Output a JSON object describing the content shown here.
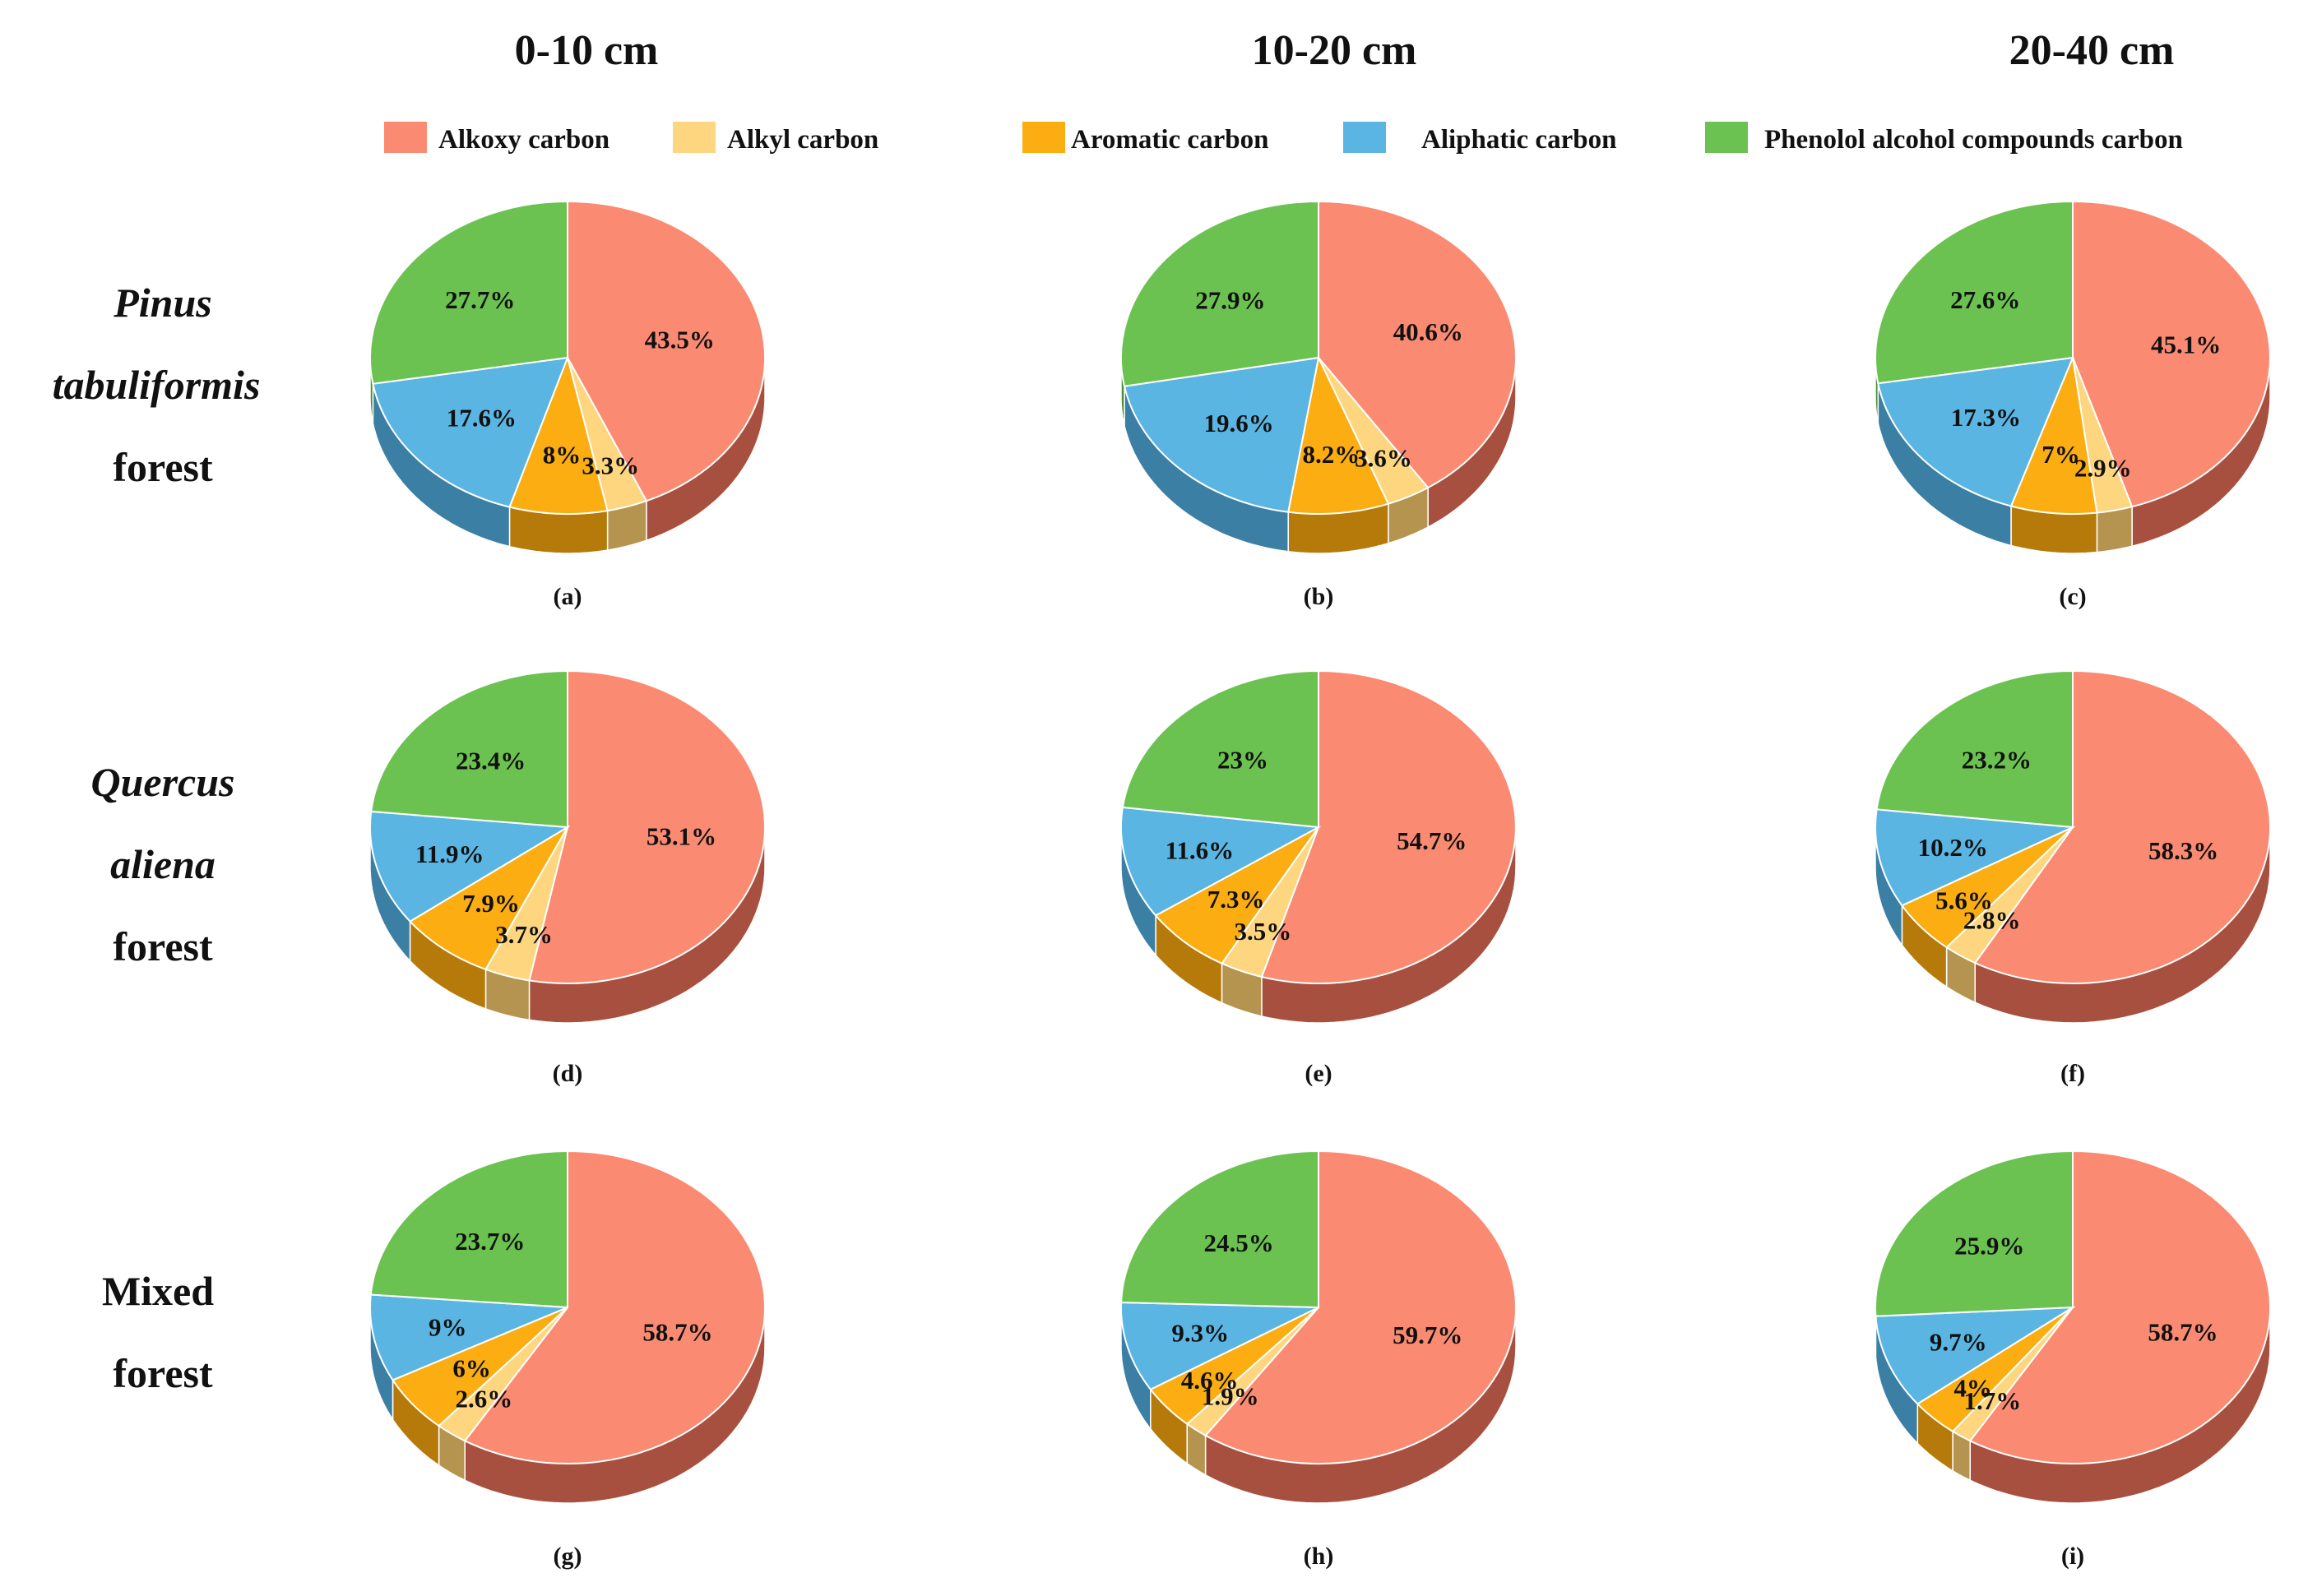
{
  "column_titles": [
    "0-10 cm",
    "10-20 cm",
    "20-40 cm"
  ],
  "row_titles": [
    {
      "lines": [
        "Pinus",
        "tabuliformis",
        "forest"
      ],
      "italic": [
        true,
        true,
        false
      ]
    },
    {
      "lines": [
        "Quercus",
        "aliena",
        "forest"
      ],
      "italic": [
        true,
        true,
        false
      ]
    },
    {
      "lines": [
        "Mixed",
        "forest"
      ],
      "italic": [
        false,
        false
      ]
    }
  ],
  "legend": [
    {
      "label": "Alkoxy carbon",
      "color": "#fa8b72"
    },
    {
      "label": "Alkyl carbon",
      "color": "#fdd67f"
    },
    {
      "label": "Aromatic carbon",
      "color": "#fbad12"
    },
    {
      "label": "Aliphatic carbon",
      "color": "#5bb5e2"
    },
    {
      "label": "Phenolol alcohol compounds carbon",
      "color": "#6cc250"
    }
  ],
  "chart_data": [
    {
      "type": "pie",
      "caption": "(a)",
      "labels": [
        "Alkoxy carbon",
        "Alkyl carbon",
        "Aromatic carbon",
        "Aliphatic carbon",
        "Phenolol alcohol compounds carbon"
      ],
      "values": [
        43.5,
        3.3,
        8,
        17.6,
        27.7
      ],
      "value_labels": [
        "43.5%",
        "3.3%",
        "8%",
        "17.6%",
        "27.7%"
      ]
    },
    {
      "type": "pie",
      "caption": "(b)",
      "labels": [
        "Alkoxy carbon",
        "Alkyl carbon",
        "Aromatic carbon",
        "Aliphatic carbon",
        "Phenolol alcohol compounds carbon"
      ],
      "values": [
        40.6,
        3.6,
        8.2,
        19.6,
        27.9
      ],
      "value_labels": [
        "40.6%",
        "3.6%",
        "8.2%",
        "19.6%",
        "27.9%"
      ]
    },
    {
      "type": "pie",
      "caption": "(c)",
      "labels": [
        "Alkoxy carbon",
        "Alkyl carbon",
        "Aromatic carbon",
        "Aliphatic carbon",
        "Phenolol alcohol compounds carbon"
      ],
      "values": [
        45.1,
        2.9,
        7,
        17.3,
        27.6
      ],
      "value_labels": [
        "45.1%",
        "2.9%",
        "7%",
        "17.3%",
        "27.6%"
      ]
    },
    {
      "type": "pie",
      "caption": "(d)",
      "labels": [
        "Alkoxy carbon",
        "Alkyl carbon",
        "Aromatic carbon",
        "Aliphatic carbon",
        "Phenolol alcohol compounds carbon"
      ],
      "values": [
        53.1,
        3.7,
        7.9,
        11.9,
        23.4
      ],
      "value_labels": [
        "53.1%",
        "3.7%",
        "7.9%",
        "11.9%",
        "23.4%"
      ]
    },
    {
      "type": "pie",
      "caption": "(e)",
      "labels": [
        "Alkoxy carbon",
        "Alkyl carbon",
        "Aromatic carbon",
        "Aliphatic carbon",
        "Phenolol alcohol compounds carbon"
      ],
      "values": [
        54.7,
        3.5,
        7.3,
        11.6,
        23
      ],
      "value_labels": [
        "54.7%",
        "3.5%",
        "7.3%",
        "11.6%",
        "23%"
      ]
    },
    {
      "type": "pie",
      "caption": "(f)",
      "labels": [
        "Alkoxy carbon",
        "Alkyl carbon",
        "Aromatic carbon",
        "Aliphatic carbon",
        "Phenolol alcohol compounds carbon"
      ],
      "values": [
        58.3,
        2.8,
        5.6,
        10.2,
        23.2
      ],
      "value_labels": [
        "58.3%",
        "2.8%",
        "5.6%",
        "10.2%",
        "23.2%"
      ]
    },
    {
      "type": "pie",
      "caption": "(g)",
      "labels": [
        "Alkoxy carbon",
        "Alkyl carbon",
        "Aromatic carbon",
        "Aliphatic carbon",
        "Phenolol alcohol compounds carbon"
      ],
      "values": [
        58.7,
        2.6,
        6,
        9,
        23.7
      ],
      "value_labels": [
        "58.7%",
        "2.6%",
        "6%",
        "9%",
        "23.7%"
      ]
    },
    {
      "type": "pie",
      "caption": "(h)",
      "labels": [
        "Alkoxy carbon",
        "Alkyl carbon",
        "Aromatic carbon",
        "Aliphatic carbon",
        "Phenolol alcohol compounds carbon"
      ],
      "values": [
        59.7,
        1.9,
        4.6,
        9.3,
        24.5
      ],
      "value_labels": [
        "59.7%",
        "1.9%",
        "4.6%",
        "9.3%",
        "24.5%"
      ]
    },
    {
      "type": "pie",
      "caption": "(i)",
      "labels": [
        "Alkoxy carbon",
        "Alkyl carbon",
        "Aromatic carbon",
        "Aliphatic carbon",
        "Phenolol alcohol compounds carbon"
      ],
      "values": [
        58.7,
        1.7,
        4,
        9.7,
        25.9
      ],
      "value_labels": [
        "58.7%",
        "1.7%",
        "4%",
        "9.7%",
        "25.9%"
      ]
    }
  ]
}
